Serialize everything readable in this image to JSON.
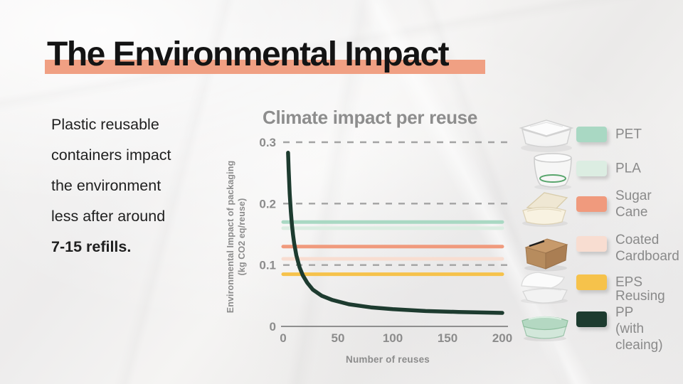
{
  "slide": {
    "title": "The Environmental Impact",
    "intro": {
      "lines": [
        "Plastic reusable",
        "containers impact",
        "the environment",
        "less after around"
      ],
      "emphasis": "7-15 refills."
    }
  },
  "chart": {
    "title": "Climate impact per reuse",
    "y_axis_label": "Environmental Impact of packaging\n(kg CO2 eq/reuse)",
    "x_axis_label": "Number of reuses",
    "chart_data": {
      "type": "line",
      "title": "Climate impact per reuse",
      "xlabel": "Number of reuses",
      "ylabel": "Environmental Impact of packaging (kg CO2 eq/reuse)",
      "xlim": [
        0,
        200
      ],
      "ylim": [
        0,
        0.3
      ],
      "x_ticks": [
        0,
        50,
        100,
        150,
        200
      ],
      "y_ticks": [
        0.3,
        0.2,
        0.1,
        0
      ],
      "gridlines": {
        "style": "dashed",
        "values": [
          0.3,
          0.2,
          0.1
        ]
      },
      "series": [
        {
          "name": "PET",
          "type": "constant",
          "value": 0.17,
          "color": "#a9d8c3"
        },
        {
          "name": "PLA",
          "type": "constant",
          "value": 0.16,
          "color": "#dcede2"
        },
        {
          "name": "Sugar Cane",
          "type": "constant",
          "value": 0.13,
          "color": "#f09a7d"
        },
        {
          "name": "Coated Cardboard",
          "type": "constant",
          "value": 0.11,
          "color": "#f8ddd1"
        },
        {
          "name": "EPS",
          "type": "constant",
          "value": 0.085,
          "color": "#f6c24b"
        },
        {
          "name": "Reusing PP (with cleaing)",
          "type": "curve",
          "color": "#1d3b2f",
          "points": [
            [
              4.5,
              0.283
            ],
            [
              5,
              0.256
            ],
            [
              6,
              0.216
            ],
            [
              7,
              0.187
            ],
            [
              8,
              0.166
            ],
            [
              9,
              0.149
            ],
            [
              10,
              0.136
            ],
            [
              12,
              0.116
            ],
            [
              15,
              0.096
            ],
            [
              18,
              0.083
            ],
            [
              22,
              0.071
            ],
            [
              27,
              0.06
            ],
            [
              35,
              0.05
            ],
            [
              45,
              0.043
            ],
            [
              60,
              0.036
            ],
            [
              80,
              0.031
            ],
            [
              100,
              0.028
            ],
            [
              130,
              0.025
            ],
            [
              160,
              0.0235
            ],
            [
              200,
              0.022
            ]
          ]
        }
      ]
    }
  },
  "legend": {
    "items": [
      {
        "label": "PET",
        "color": "#a9d8c3",
        "icon": "pet-container-icon"
      },
      {
        "label": "PLA",
        "color": "#dcede2",
        "icon": "pla-cup-icon"
      },
      {
        "label": "Sugar Cane",
        "color": "#f09a7d",
        "icon": "sugar-cane-clamshell-icon"
      },
      {
        "label": "Coated\nCardboard",
        "color": "#f8ddd1",
        "icon": "coated-cardboard-box-icon"
      },
      {
        "label": "EPS",
        "color": "#f6c24b",
        "icon": "eps-foam-clamshell-icon"
      },
      {
        "label": "Reusing PP\n(with cleaing)",
        "color": "#1d3b2f",
        "icon": "reusable-pp-container-icon"
      }
    ]
  },
  "colors": {
    "highlight": "#f0a083",
    "text_dark": "#1f1f1f",
    "text_gray": "#8c8c8c",
    "grid": "#a3a3a3",
    "axis": "#8f8f8f"
  }
}
